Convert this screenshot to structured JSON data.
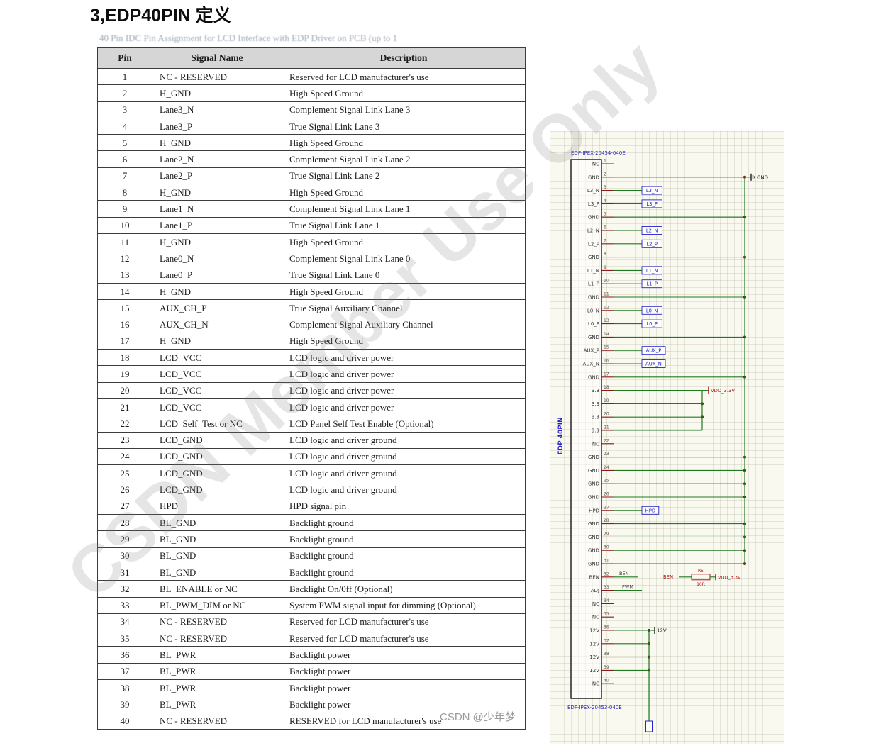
{
  "page": {
    "title": "3,EDP40PIN 定义",
    "caption_partial": "40 Pin IDC Pin Assignment for LCD Interface with EDP Driver on PCB (up to 1",
    "watermark_diagonal": "CSDN Member Use Only",
    "watermark_credit": "CSDN @少年梦"
  },
  "table": {
    "headers": [
      "Pin",
      "Signal Name",
      "Description"
    ],
    "rows": [
      [
        "1",
        "NC - RESERVED",
        "Reserved for LCD manufacturer's use"
      ],
      [
        "2",
        "H_GND",
        "High Speed Ground"
      ],
      [
        "3",
        "Lane3_N",
        "Complement Signal Link Lane 3"
      ],
      [
        "4",
        "Lane3_P",
        "True Signal Link Lane 3"
      ],
      [
        "5",
        "H_GND",
        "High Speed Ground"
      ],
      [
        "6",
        "Lane2_N",
        "Complement Signal Link Lane 2"
      ],
      [
        "7",
        "Lane2_P",
        "True Signal Link Lane 2"
      ],
      [
        "8",
        "H_GND",
        "High Speed Ground"
      ],
      [
        "9",
        "Lane1_N",
        "Complement Signal Link Lane 1"
      ],
      [
        "10",
        "Lane1_P",
        "True Signal Link Lane 1"
      ],
      [
        "11",
        "H_GND",
        "High Speed Ground"
      ],
      [
        "12",
        "Lane0_N",
        "Complement Signal Link Lane 0"
      ],
      [
        "13",
        "Lane0_P",
        "True Signal Link Lane 0"
      ],
      [
        "14",
        "H_GND",
        "High Speed Ground"
      ],
      [
        "15",
        "AUX_CH_P",
        "True Signal Auxiliary Channel"
      ],
      [
        "16",
        "AUX_CH_N",
        "Complement Signal Auxiliary Channel"
      ],
      [
        "17",
        "H_GND",
        "High Speed Ground"
      ],
      [
        "18",
        "LCD_VCC",
        "LCD logic and driver power"
      ],
      [
        "19",
        "LCD_VCC",
        "LCD logic and driver power"
      ],
      [
        "20",
        "LCD_VCC",
        "LCD logic and driver power"
      ],
      [
        "21",
        "LCD_VCC",
        "LCD logic and driver power"
      ],
      [
        "22",
        "LCD_Self_Test or NC",
        "LCD Panel Self Test Enable (Optional)"
      ],
      [
        "23",
        "LCD_GND",
        "LCD logic and driver ground"
      ],
      [
        "24",
        "LCD_GND",
        "LCD logic and driver ground"
      ],
      [
        "25",
        "LCD_GND",
        "LCD logic and driver ground"
      ],
      [
        "26",
        "LCD_GND",
        "LCD logic and driver ground"
      ],
      [
        "27",
        "HPD",
        "HPD signal pin"
      ],
      [
        "28",
        "BL_GND",
        "Backlight ground"
      ],
      [
        "29",
        "BL_GND",
        "Backlight ground"
      ],
      [
        "30",
        "BL_GND",
        "Backlight ground"
      ],
      [
        "31",
        "BL_GND",
        "Backlight ground"
      ],
      [
        "32",
        "BL_ENABLE or NC",
        "Backlight On/0ff (Optional)"
      ],
      [
        "33",
        "BL_PWM_DIM or NC",
        "System PWM signal input for dimming (Optional)"
      ],
      [
        "34",
        "NC - RESERVED",
        "Reserved for LCD manufacturer's use"
      ],
      [
        "35",
        "NC - RESERVED",
        "Reserved for LCD manufacturer's use"
      ],
      [
        "36",
        "BL_PWR",
        "Backlight power"
      ],
      [
        "37",
        "BL_PWR",
        "Backlight power"
      ],
      [
        "38",
        "BL_PWR",
        "Backlight power"
      ],
      [
        "39",
        "BL_PWR",
        "Backlight power"
      ],
      [
        "40",
        "NC - RESERVED",
        "RESERVED for LCD manufacturer's use"
      ]
    ]
  },
  "schematic": {
    "part_number_top": "EDP-IPEX-20454-040E",
    "part_number_bottom": "EDP-IPEX-20453-040E",
    "connector_label": "EDP 40PIN",
    "gnd_net": "GND",
    "vdd_net": "VDD_3.3V",
    "v12_net": "12V",
    "ben_net": "BEN",
    "pwm_net": "PWM",
    "resistor_ref": "R5",
    "resistor_value": "10R",
    "pins": [
      {
        "num": 1,
        "name": "NC",
        "kind": "nc"
      },
      {
        "num": 2,
        "name": "GND",
        "kind": "gnd"
      },
      {
        "num": 3,
        "name": "L3_N",
        "kind": "net",
        "label": "L3_N"
      },
      {
        "num": 4,
        "name": "L3_P",
        "kind": "net",
        "label": "L3_P"
      },
      {
        "num": 5,
        "name": "GND",
        "kind": "gnd"
      },
      {
        "num": 6,
        "name": "L2_N",
        "kind": "net",
        "label": "L2_N"
      },
      {
        "num": 7,
        "name": "L2_P",
        "kind": "net",
        "label": "L2_P"
      },
      {
        "num": 8,
        "name": "GND",
        "kind": "gnd"
      },
      {
        "num": 9,
        "name": "L1_N",
        "kind": "net",
        "label": "L1_N"
      },
      {
        "num": 10,
        "name": "L1_P",
        "kind": "net",
        "label": "L1_P"
      },
      {
        "num": 11,
        "name": "GND",
        "kind": "gnd"
      },
      {
        "num": 12,
        "name": "L0_N",
        "kind": "net",
        "label": "L0_N"
      },
      {
        "num": 13,
        "name": "L0_P",
        "kind": "net",
        "label": "L0_P"
      },
      {
        "num": 14,
        "name": "GND",
        "kind": "gnd"
      },
      {
        "num": 15,
        "name": "AUX_P",
        "kind": "net",
        "label": "AUX_P"
      },
      {
        "num": 16,
        "name": "AUX_N",
        "kind": "net",
        "label": "AUX_N"
      },
      {
        "num": 17,
        "name": "GND",
        "kind": "gnd"
      },
      {
        "num": 18,
        "name": "3.3",
        "kind": "v33"
      },
      {
        "num": 19,
        "name": "3.3",
        "kind": "v33"
      },
      {
        "num": 20,
        "name": "3.3",
        "kind": "v33"
      },
      {
        "num": 21,
        "name": "3.3",
        "kind": "v33"
      },
      {
        "num": 22,
        "name": "NC",
        "kind": "nc"
      },
      {
        "num": 23,
        "name": "GND",
        "kind": "gnd"
      },
      {
        "num": 24,
        "name": "GND",
        "kind": "gnd"
      },
      {
        "num": 25,
        "name": "GND",
        "kind": "gnd"
      },
      {
        "num": 26,
        "name": "GND",
        "kind": "gnd"
      },
      {
        "num": 27,
        "name": "HPD",
        "kind": "net",
        "label": "HPD"
      },
      {
        "num": 28,
        "name": "GND",
        "kind": "gnd"
      },
      {
        "num": 29,
        "name": "GND",
        "kind": "gnd"
      },
      {
        "num": 30,
        "name": "GND",
        "kind": "gnd"
      },
      {
        "num": 31,
        "name": "GND",
        "kind": "gnd"
      },
      {
        "num": 32,
        "name": "BEN",
        "kind": "ben"
      },
      {
        "num": 33,
        "name": "ADJ",
        "kind": "adj"
      },
      {
        "num": 34,
        "name": "NC",
        "kind": "nc"
      },
      {
        "num": 35,
        "name": "NC",
        "kind": "nc"
      },
      {
        "num": 36,
        "name": "12V",
        "kind": "v12"
      },
      {
        "num": 37,
        "name": "12V",
        "kind": "v12"
      },
      {
        "num": 38,
        "name": "12V",
        "kind": "v12"
      },
      {
        "num": 39,
        "name": "12V",
        "kind": "v12"
      },
      {
        "num": 40,
        "name": "NC",
        "kind": "nc"
      }
    ]
  },
  "colors": {
    "wire": "#1f7a1f",
    "pin": "#8b1a1a",
    "blue": "#2323c8",
    "power": "#b01212",
    "junction": "#7a1a1a",
    "pin_number": "#555555",
    "pin_name": "#333333",
    "black": "#1a1a1a",
    "header_bg": "#d6d6d6"
  }
}
